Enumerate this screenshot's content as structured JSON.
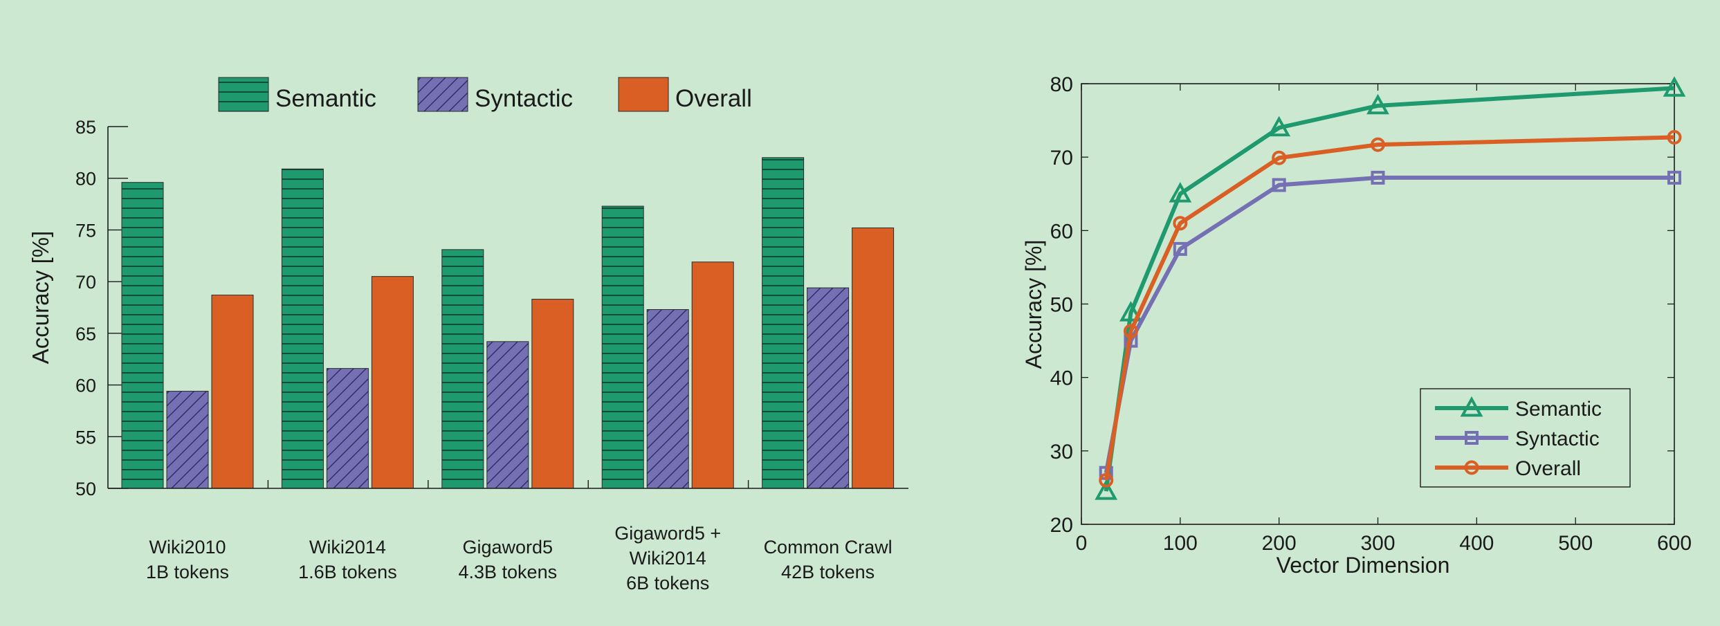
{
  "chart_data": [
    {
      "type": "bar",
      "title": "",
      "xlabel": "",
      "ylabel": "Accuracy [%]",
      "ylim": [
        50,
        85
      ],
      "yticks": [
        50,
        55,
        60,
        65,
        70,
        75,
        80,
        85
      ],
      "legend_position": "top",
      "categories": [
        [
          "Wiki2010",
          "1B tokens"
        ],
        [
          "Wiki2014",
          "1.6B tokens"
        ],
        [
          "Gigaword5",
          "4.3B tokens"
        ],
        [
          "Gigaword5 +",
          "Wiki2014",
          "6B tokens"
        ],
        [
          "Common Crawl",
          "42B tokens"
        ]
      ],
      "series": [
        {
          "name": "Semantic",
          "color": "#1f9a6e",
          "pattern": "horizontal-lines",
          "values": [
            79.6,
            80.9,
            73.1,
            77.3,
            82.0
          ]
        },
        {
          "name": "Syntactic",
          "color": "#7570b3",
          "pattern": "diagonal-hatch",
          "values": [
            59.4,
            61.6,
            64.2,
            67.3,
            69.4
          ]
        },
        {
          "name": "Overall",
          "color": "#d95f24",
          "pattern": "solid",
          "values": [
            68.7,
            70.5,
            68.3,
            71.9,
            75.2
          ]
        }
      ]
    },
    {
      "type": "line",
      "title": "",
      "xlabel": "Vector Dimension",
      "ylabel": "Accuracy [%]",
      "xlim": [
        0,
        600
      ],
      "ylim": [
        20,
        80
      ],
      "xticks": [
        0,
        100,
        200,
        300,
        400,
        500,
        600
      ],
      "yticks": [
        20,
        30,
        40,
        50,
        60,
        70,
        80
      ],
      "legend_position": "bottom-right",
      "x": [
        25,
        50,
        100,
        200,
        300,
        600
      ],
      "series": [
        {
          "name": "Semantic",
          "color": "#1f9a6e",
          "marker": "triangle",
          "values": [
            24.5,
            48.8,
            65.0,
            74.0,
            77.0,
            79.4
          ]
        },
        {
          "name": "Syntactic",
          "color": "#7570b3",
          "marker": "square",
          "values": [
            27.0,
            45.0,
            57.5,
            66.2,
            67.2,
            67.2
          ]
        },
        {
          "name": "Overall",
          "color": "#d95f24",
          "marker": "circle",
          "values": [
            26.0,
            46.3,
            61.0,
            69.9,
            71.7,
            72.7
          ]
        }
      ]
    }
  ]
}
